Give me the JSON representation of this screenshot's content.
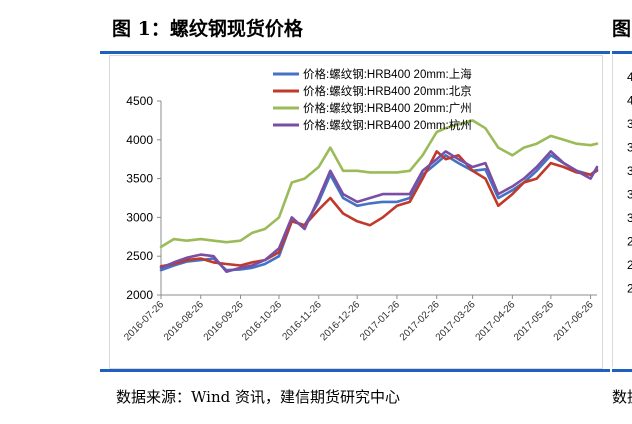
{
  "page": {
    "figure_title": "图 1：螺纹钢现货价格",
    "figure_title_cut": "图",
    "source": "数据来源：Wind 资讯，建信期货研究中心",
    "source_cut": "数据"
  },
  "chart_data": {
    "type": "line",
    "title": "",
    "xlabel": "",
    "ylabel": "",
    "ylim": [
      2000,
      4500
    ],
    "yticks": [
      2000,
      2500,
      3000,
      3500,
      4000,
      4500
    ],
    "grid": false,
    "legend_position": "top-center",
    "x_tick_labels": [
      "2016-07-26",
      "2016-08-26",
      "2016-09-26",
      "2016-10-26",
      "2016-11-26",
      "2016-12-26",
      "2017-01-26",
      "2017-02-26",
      "2017-03-26",
      "2017-04-26",
      "2017-05-26",
      "2017-06-26"
    ],
    "x_range": [
      "2016-07-26",
      "2017-07-01"
    ],
    "series": [
      {
        "name": "价格:螺纹钢:HRB400 20mm:上海",
        "color": "#4472c4",
        "x": [
          "2016-07-26",
          "2016-08-05",
          "2016-08-15",
          "2016-08-26",
          "2016-09-05",
          "2016-09-15",
          "2016-09-26",
          "2016-10-05",
          "2016-10-15",
          "2016-10-26",
          "2016-11-05",
          "2016-11-15",
          "2016-11-26",
          "2016-12-05",
          "2016-12-15",
          "2016-12-26",
          "2017-01-05",
          "2017-01-15",
          "2017-01-26",
          "2017-02-05",
          "2017-02-15",
          "2017-02-26",
          "2017-03-05",
          "2017-03-15",
          "2017-03-26",
          "2017-04-05",
          "2017-04-15",
          "2017-04-26",
          "2017-05-05",
          "2017-05-15",
          "2017-05-26",
          "2017-06-05",
          "2017-06-15",
          "2017-06-26",
          "2017-07-01"
        ],
        "values": [
          2320,
          2380,
          2430,
          2450,
          2470,
          2320,
          2330,
          2350,
          2400,
          2500,
          2950,
          2900,
          3200,
          3550,
          3250,
          3150,
          3180,
          3200,
          3200,
          3250,
          3550,
          3700,
          3800,
          3700,
          3600,
          3620,
          3250,
          3350,
          3450,
          3600,
          3800,
          3700,
          3600,
          3550,
          3620
        ]
      },
      {
        "name": "价格:螺纹钢:HRB400 20mm:北京",
        "color": "#c0392b",
        "x": [
          "2016-07-26",
          "2016-08-05",
          "2016-08-15",
          "2016-08-26",
          "2016-09-05",
          "2016-09-15",
          "2016-09-26",
          "2016-10-05",
          "2016-10-15",
          "2016-10-26",
          "2016-11-05",
          "2016-11-15",
          "2016-11-26",
          "2016-12-05",
          "2016-12-15",
          "2016-12-26",
          "2017-01-05",
          "2017-01-15",
          "2017-01-26",
          "2017-02-05",
          "2017-02-15",
          "2017-02-26",
          "2017-03-05",
          "2017-03-15",
          "2017-03-26",
          "2017-04-05",
          "2017-04-15",
          "2017-04-26",
          "2017-05-05",
          "2017-05-15",
          "2017-05-26",
          "2017-06-05",
          "2017-06-15",
          "2017-06-26",
          "2017-07-01"
        ],
        "values": [
          2370,
          2400,
          2450,
          2470,
          2420,
          2400,
          2380,
          2420,
          2450,
          2550,
          2950,
          2900,
          3100,
          3250,
          3050,
          2950,
          2900,
          3000,
          3150,
          3200,
          3500,
          3850,
          3750,
          3800,
          3600,
          3500,
          3150,
          3300,
          3450,
          3500,
          3700,
          3650,
          3580,
          3550,
          3600
        ]
      },
      {
        "name": "价格:螺纹钢:HRB400 20mm:广州",
        "color": "#9bbb59",
        "x": [
          "2016-07-26",
          "2016-08-05",
          "2016-08-15",
          "2016-08-26",
          "2016-09-05",
          "2016-09-15",
          "2016-09-26",
          "2016-10-05",
          "2016-10-15",
          "2016-10-26",
          "2016-11-05",
          "2016-11-15",
          "2016-11-26",
          "2016-12-05",
          "2016-12-15",
          "2016-12-26",
          "2017-01-05",
          "2017-01-15",
          "2017-01-26",
          "2017-02-05",
          "2017-02-15",
          "2017-02-26",
          "2017-03-05",
          "2017-03-15",
          "2017-03-26",
          "2017-04-05",
          "2017-04-15",
          "2017-04-26",
          "2017-05-05",
          "2017-05-15",
          "2017-05-26",
          "2017-06-05",
          "2017-06-15",
          "2017-06-26",
          "2017-07-01"
        ],
        "values": [
          2620,
          2720,
          2700,
          2720,
          2700,
          2680,
          2700,
          2800,
          2850,
          3000,
          3450,
          3500,
          3650,
          3900,
          3600,
          3600,
          3580,
          3580,
          3580,
          3600,
          3800,
          4100,
          4150,
          4200,
          4250,
          4150,
          3900,
          3800,
          3900,
          3950,
          4050,
          4000,
          3950,
          3930,
          3950
        ]
      },
      {
        "name": "价格:螺纹钢:HRB400 20mm:杭州",
        "color": "#7a4fa3",
        "x": [
          "2016-07-26",
          "2016-08-05",
          "2016-08-15",
          "2016-08-26",
          "2016-09-05",
          "2016-09-15",
          "2016-09-26",
          "2016-10-05",
          "2016-10-15",
          "2016-10-26",
          "2016-11-05",
          "2016-11-15",
          "2016-11-26",
          "2016-12-05",
          "2016-12-15",
          "2016-12-26",
          "2017-01-05",
          "2017-01-15",
          "2017-01-26",
          "2017-02-05",
          "2017-02-15",
          "2017-02-26",
          "2017-03-05",
          "2017-03-15",
          "2017-03-26",
          "2017-04-05",
          "2017-04-15",
          "2017-04-26",
          "2017-05-05",
          "2017-05-15",
          "2017-05-26",
          "2017-06-05",
          "2017-06-15",
          "2017-06-26",
          "2017-07-01"
        ],
        "values": [
          2350,
          2420,
          2480,
          2520,
          2500,
          2300,
          2350,
          2380,
          2450,
          2600,
          3000,
          2850,
          3250,
          3600,
          3300,
          3200,
          3250,
          3300,
          3300,
          3300,
          3600,
          3750,
          3850,
          3750,
          3650,
          3700,
          3300,
          3400,
          3500,
          3650,
          3850,
          3700,
          3600,
          3500,
          3650
        ]
      }
    ]
  },
  "right_panel": {
    "tick_digits": [
      "4",
      "4",
      "3",
      "3",
      "3",
      "3",
      "3",
      "2",
      "2",
      "2"
    ]
  }
}
